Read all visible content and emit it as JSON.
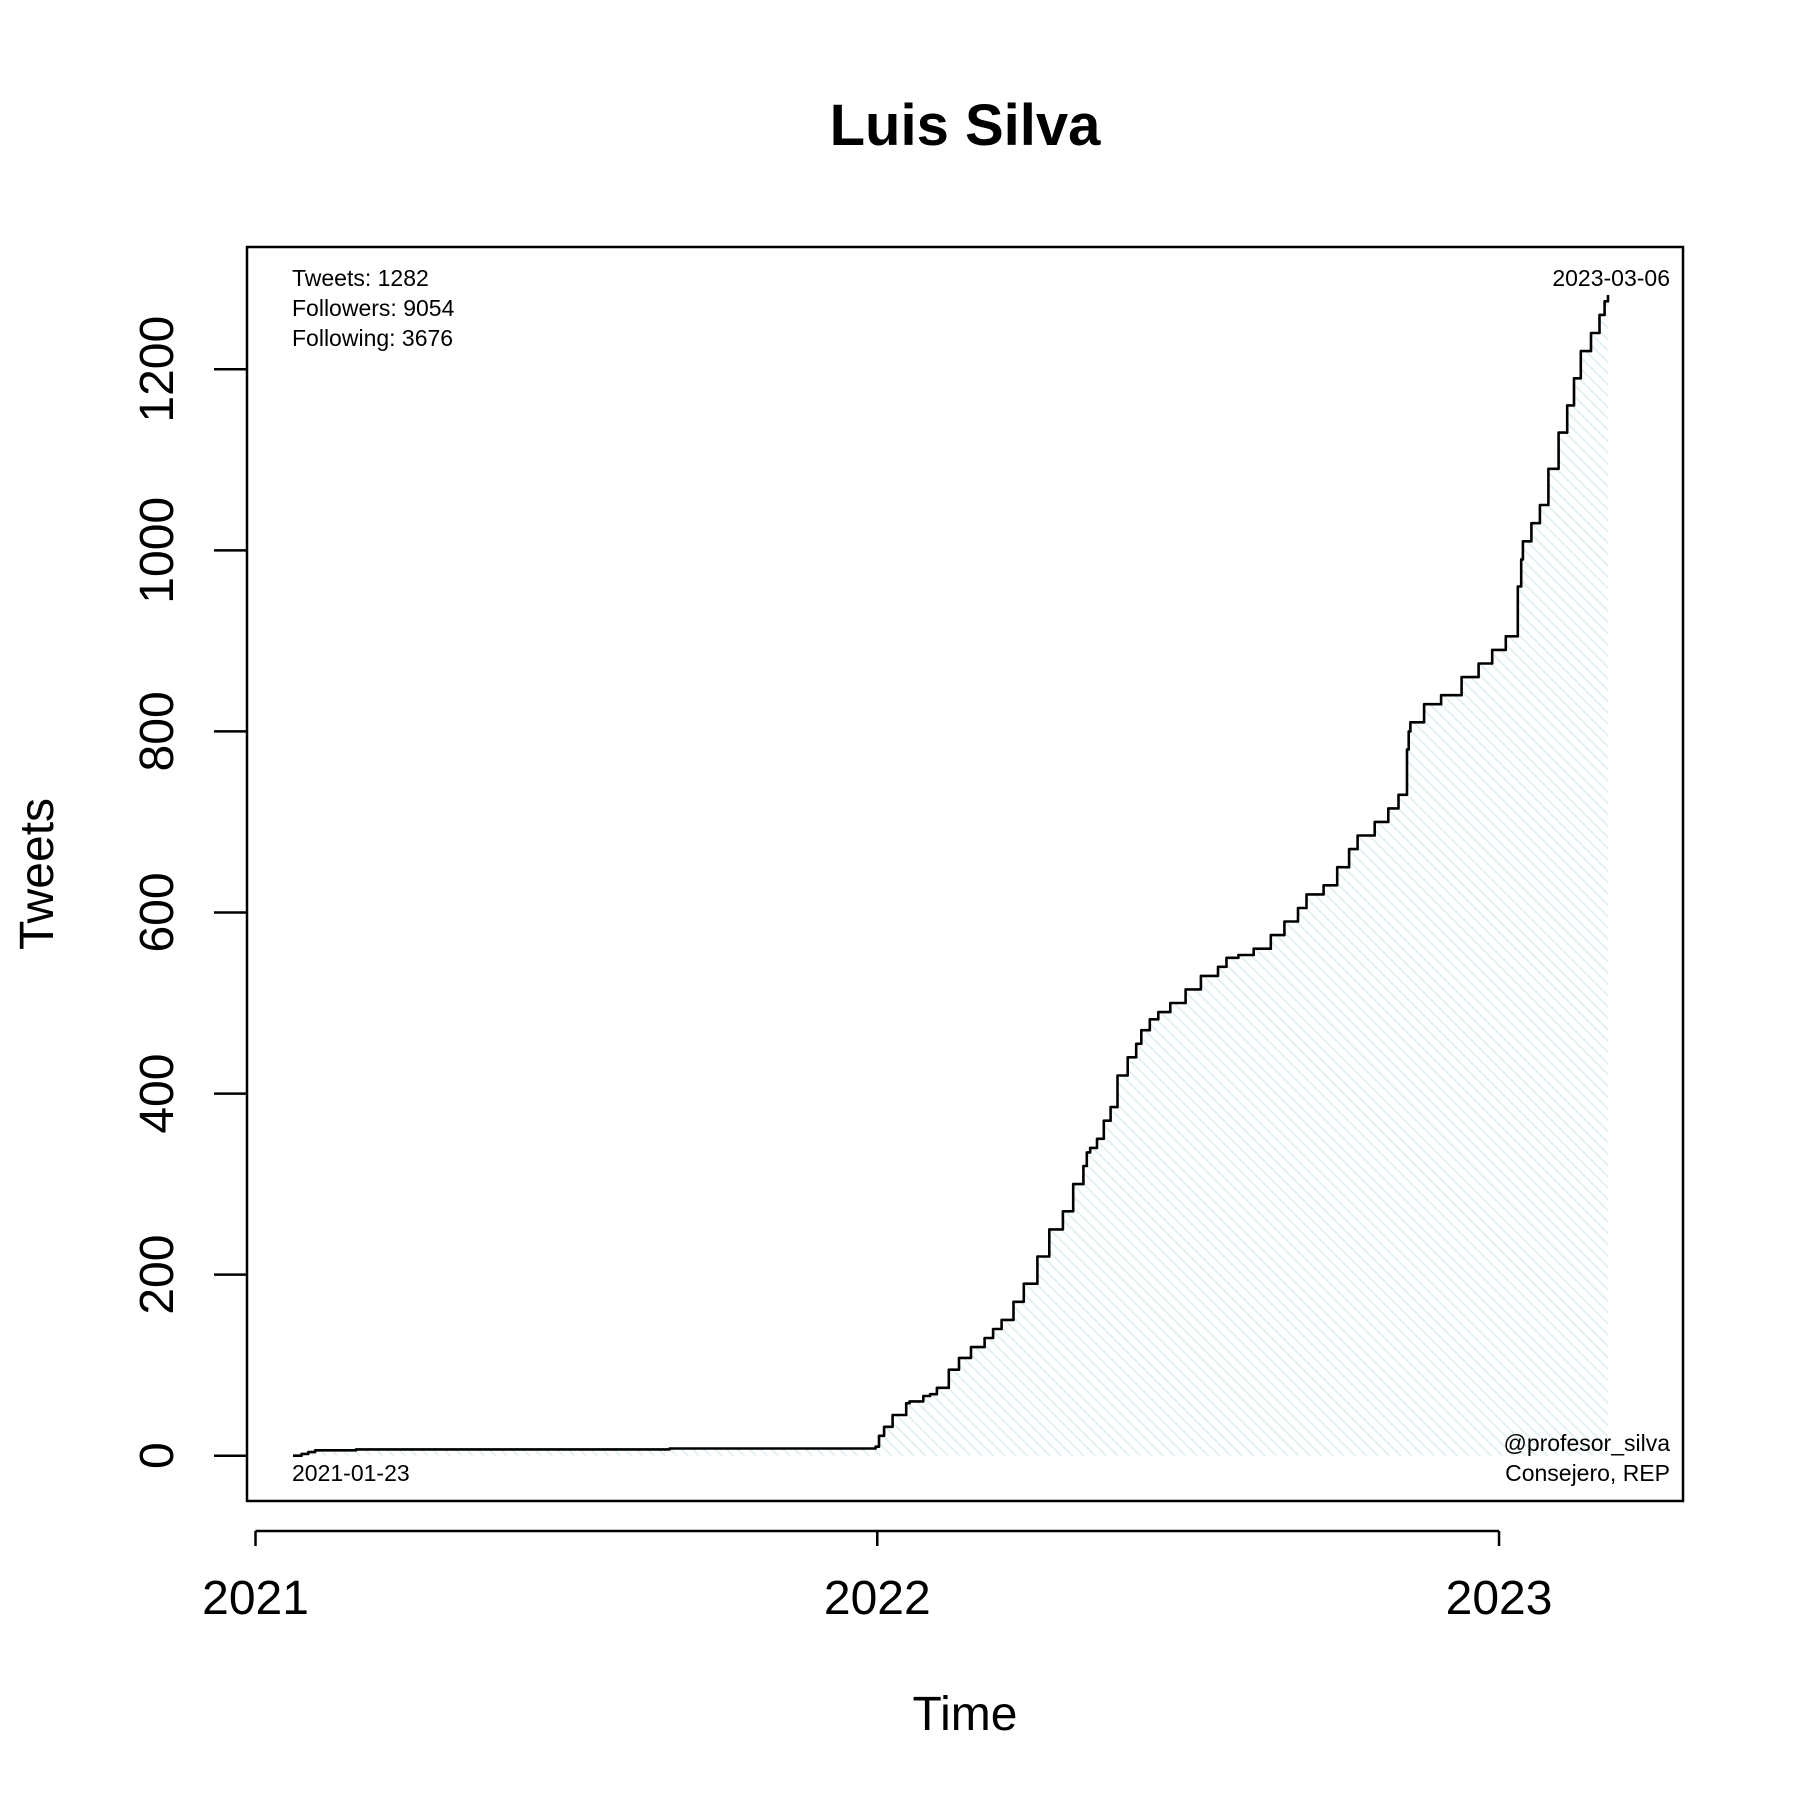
{
  "chart_data": {
    "type": "area",
    "title": "Luis Silva",
    "xlabel": "Time",
    "ylabel": "Tweets",
    "x_ticks": [
      "2021",
      "2022",
      "2023"
    ],
    "y_ticks": [
      "0",
      "200",
      "400",
      "600",
      "800",
      "1000",
      "1200"
    ],
    "xlim": [
      "2020-12-27",
      "2023-04-19"
    ],
    "ylim": [
      -50,
      1335
    ],
    "grid": false,
    "fill_color": "#e6f3f6",
    "line_color": "#000000",
    "stats": {
      "tweets": "Tweets: 1282",
      "followers": "Followers: 9054",
      "following": "Following: 3676"
    },
    "start_date_label": "2021-01-23",
    "end_date_label": "2023-03-06",
    "handle": "@profesor_silva",
    "role": "Consejero, REP",
    "series": [
      {
        "x": [
          "2021-01-23",
          "2021-01-28",
          "2021-02-01",
          "2021-02-05",
          "2021-03-01",
          "2021-06-01",
          "2021-09-01",
          "2021-12-31",
          "2022-01-02",
          "2022-01-05",
          "2022-01-10",
          "2022-01-18",
          "2022-01-20",
          "2022-01-28",
          "2022-02-01",
          "2022-02-05",
          "2022-02-12",
          "2022-02-18",
          "2022-02-25",
          "2022-03-05",
          "2022-03-10",
          "2022-03-15",
          "2022-03-22",
          "2022-03-28",
          "2022-04-05",
          "2022-04-12",
          "2022-04-20",
          "2022-04-26",
          "2022-05-02",
          "2022-05-04",
          "2022-05-06",
          "2022-05-10",
          "2022-05-14",
          "2022-05-18",
          "2022-05-22",
          "2022-05-28",
          "2022-06-02",
          "2022-06-05",
          "2022-06-10",
          "2022-06-15",
          "2022-06-22",
          "2022-07-01",
          "2022-07-10",
          "2022-07-20",
          "2022-07-25",
          "2022-08-01",
          "2022-08-10",
          "2022-08-20",
          "2022-08-28",
          "2022-09-05",
          "2022-09-10",
          "2022-09-20",
          "2022-09-28",
          "2022-10-05",
          "2022-10-10",
          "2022-10-20",
          "2022-10-28",
          "2022-11-03",
          "2022-11-08",
          "2022-11-09",
          "2022-11-10",
          "2022-11-18",
          "2022-11-28",
          "2022-12-10",
          "2022-12-20",
          "2022-12-28",
          "2023-01-05",
          "2023-01-12",
          "2023-01-14",
          "2023-01-15",
          "2023-01-20",
          "2023-01-25",
          "2023-01-30",
          "2023-02-05",
          "2023-02-10",
          "2023-02-14",
          "2023-02-18",
          "2023-02-24",
          "2023-03-01",
          "2023-03-04",
          "2023-03-06"
        ],
        "y": [
          0,
          2,
          4,
          6,
          7,
          7,
          8,
          10,
          22,
          32,
          45,
          58,
          60,
          66,
          68,
          75,
          95,
          108,
          120,
          130,
          140,
          150,
          170,
          190,
          220,
          250,
          270,
          300,
          320,
          335,
          340,
          350,
          370,
          385,
          420,
          440,
          455,
          470,
          482,
          490,
          500,
          515,
          530,
          540,
          550,
          553,
          560,
          575,
          590,
          605,
          620,
          630,
          650,
          670,
          685,
          700,
          715,
          730,
          780,
          800,
          810,
          830,
          840,
          860,
          875,
          890,
          905,
          960,
          990,
          1010,
          1030,
          1050,
          1090,
          1130,
          1160,
          1190,
          1220,
          1240,
          1260,
          1275,
          1282
        ]
      }
    ]
  }
}
